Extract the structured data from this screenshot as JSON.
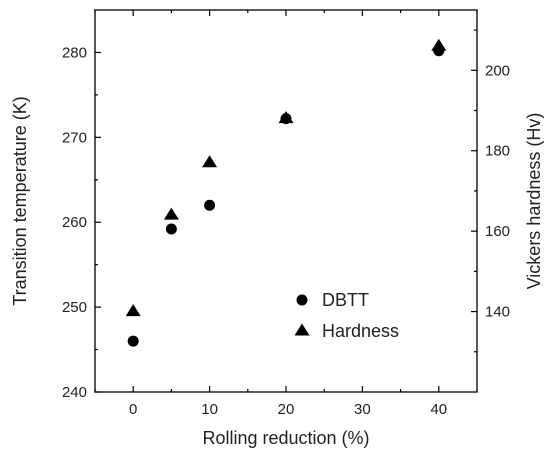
{
  "chart_data": {
    "type": "scatter",
    "xlabel": "Rolling reduction (%)",
    "ylabel": "Transition temperature (K)",
    "y2label": "Vickers hardness (Hv)",
    "xlim": [
      -5,
      45
    ],
    "ylim": [
      240,
      285
    ],
    "y2lim": [
      120,
      215
    ],
    "x_ticks": [
      0,
      10,
      20,
      30,
      40
    ],
    "y_ticks": [
      240,
      250,
      260,
      270,
      280
    ],
    "y2_ticks": [
      140,
      160,
      180,
      200
    ],
    "legend_position": "bottom-right",
    "series": [
      {
        "name": "DBTT",
        "axis": "left",
        "marker": "circle",
        "x": [
          0,
          5,
          10,
          20,
          40
        ],
        "y": [
          246,
          259.2,
          262,
          272.2,
          280.2
        ]
      },
      {
        "name": "Hardness",
        "axis": "right",
        "marker": "triangle",
        "x": [
          0,
          5,
          10,
          20,
          40
        ],
        "y": [
          140,
          164,
          177,
          188,
          206
        ]
      }
    ]
  }
}
